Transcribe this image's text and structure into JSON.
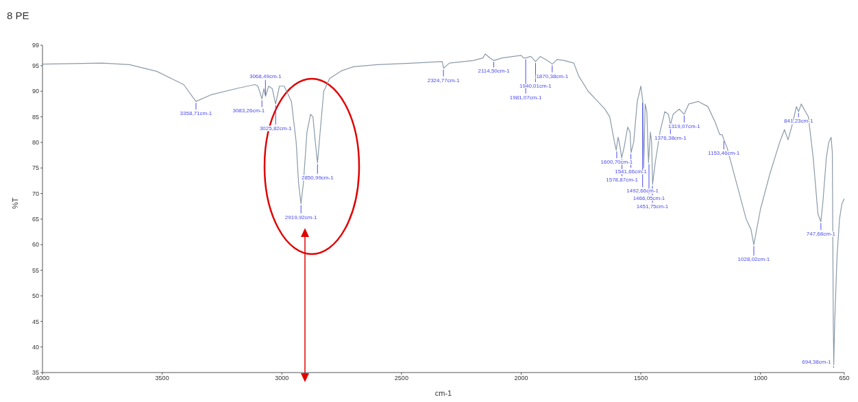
{
  "chart_data": {
    "type": "line",
    "title": "8 PE",
    "xlabel": "cm-1",
    "ylabel": "%T",
    "xlim": [
      4000,
      650
    ],
    "xticks": [
      4000,
      3500,
      3000,
      2500,
      2000,
      1500,
      1000,
      650
    ],
    "ylim": [
      35,
      99
    ],
    "yticks": [
      35,
      40,
      45,
      50,
      55,
      60,
      65,
      70,
      75,
      80,
      85,
      90,
      95,
      99
    ],
    "grid": false,
    "legend": false,
    "marker": "none",
    "line_style": "solid",
    "series": [
      {
        "color": "#8a9aa8",
        "x": [
          4000,
          3750,
          3637,
          3523,
          3410,
          3359,
          3296,
          3183,
          3112,
          3100,
          3083,
          3075,
          3068,
          3055,
          3040,
          3026,
          3010,
          2990,
          2960,
          2940,
          2930,
          2920,
          2910,
          2895,
          2880,
          2870,
          2860,
          2851,
          2840,
          2825,
          2800,
          2750,
          2700,
          2600,
          2450,
          2330,
          2324,
          2300,
          2200,
          2160,
          2150,
          2130,
          2114,
          2080,
          2000,
          1990,
          1981,
          1960,
          1940,
          1920,
          1890,
          1870,
          1850,
          1820,
          1780,
          1760,
          1720,
          1680,
          1650,
          1630,
          1610,
          1603,
          1595,
          1590,
          1580,
          1570,
          1555,
          1545,
          1541,
          1530,
          1515,
          1500,
          1492,
          1488,
          1482,
          1475,
          1468,
          1460,
          1455,
          1451,
          1440,
          1420,
          1400,
          1385,
          1376,
          1365,
          1340,
          1319,
          1300,
          1260,
          1220,
          1190,
          1170,
          1160,
          1153,
          1140,
          1100,
          1060,
          1040,
          1028,
          1020,
          1000,
          960,
          920,
          900,
          885,
          870,
          850,
          841,
          830,
          800,
          780,
          760,
          748,
          740,
          725,
          715,
          705,
          700,
          696,
          694,
          690,
          680,
          670,
          660,
          650
        ],
        "values": [
          95.3,
          95.5,
          95.2,
          93.9,
          91.3,
          88,
          89.3,
          90.6,
          91.3,
          91,
          88.5,
          90.5,
          89,
          91,
          90.5,
          87.5,
          91,
          91,
          88,
          80,
          72,
          68,
          72,
          82,
          85.5,
          85,
          80,
          76,
          82,
          90,
          92.5,
          94,
          94.8,
          95.2,
          95.5,
          95.8,
          94.5,
          95.5,
          96,
          96.5,
          97.3,
          96.5,
          96,
          96.5,
          97,
          96.5,
          96.5,
          96.8,
          95.8,
          96.8,
          96,
          95.3,
          96.2,
          96,
          95.5,
          93,
          90,
          88,
          86.5,
          85,
          80,
          78.5,
          81,
          80,
          77,
          79,
          83,
          82,
          78,
          80,
          88,
          91,
          88,
          75,
          87.5,
          86,
          76,
          82,
          80,
          71.8,
          76,
          82,
          86,
          85.5,
          83.5,
          85.5,
          86.5,
          85.5,
          87.5,
          88,
          87,
          84,
          81.5,
          81.5,
          80.5,
          79,
          72,
          65,
          63,
          60,
          62,
          67,
          74,
          80,
          82.5,
          80.5,
          83,
          87,
          86,
          87.5,
          85,
          77,
          66,
          64.5,
          68,
          77,
          80,
          81,
          78,
          45,
          36.5,
          45,
          58,
          65,
          68,
          69
        ]
      }
    ],
    "annotations": [
      {
        "text": "3358,71cm-1",
        "x": 3358.71,
        "y": 88
      },
      {
        "text": "3083,26cm-1",
        "x": 3083.26,
        "y": 88.5
      },
      {
        "text": "3068,49cm-1",
        "x": 3068.49,
        "y": 89
      },
      {
        "text": "3025,82cm-1",
        "x": 3025.82,
        "y": 87.5
      },
      {
        "text": "2919,92cm-1",
        "x": 2919.92,
        "y": 68
      },
      {
        "text": "2850,99cm-1",
        "x": 2850.99,
        "y": 76
      },
      {
        "text": "2324,77cm-1",
        "x": 2324.77,
        "y": 94.5
      },
      {
        "text": "2114,50cm-1",
        "x": 2114.5,
        "y": 96
      },
      {
        "text": "1981,07cm-1",
        "x": 1981.07,
        "y": 96.5
      },
      {
        "text": "1940,01cm-1",
        "x": 1940.01,
        "y": 95.8
      },
      {
        "text": "1870,38cm-1",
        "x": 1870.38,
        "y": 95.3
      },
      {
        "text": "1600,70cm-1",
        "x": 1600.7,
        "y": 78.5
      },
      {
        "text": "1578,87cm-1",
        "x": 1578.87,
        "y": 77
      },
      {
        "text": "1541,66cm-1",
        "x": 1541.66,
        "y": 78
      },
      {
        "text": "1492,66cm-1",
        "x": 1492.66,
        "y": 88
      },
      {
        "text": "1466,05cm-1",
        "x": 1466.05,
        "y": 76
      },
      {
        "text": "1451,75cm-1",
        "x": 1451.75,
        "y": 71.8
      },
      {
        "text": "1376,38cm-1",
        "x": 1376.38,
        "y": 83.5
      },
      {
        "text": "1319,07cm-1",
        "x": 1319.07,
        "y": 85.5
      },
      {
        "text": "1153,46cm-1",
        "x": 1153.46,
        "y": 80.5
      },
      {
        "text": "1028,02cm-1",
        "x": 1028.02,
        "y": 60
      },
      {
        "text": "841,23cm-1",
        "x": 841.23,
        "y": 86
      },
      {
        "text": "747,68cm-1",
        "x": 747.68,
        "y": 64.5
      },
      {
        "text": "694,38cm-1",
        "x": 694.38,
        "y": 36.5
      }
    ]
  }
}
